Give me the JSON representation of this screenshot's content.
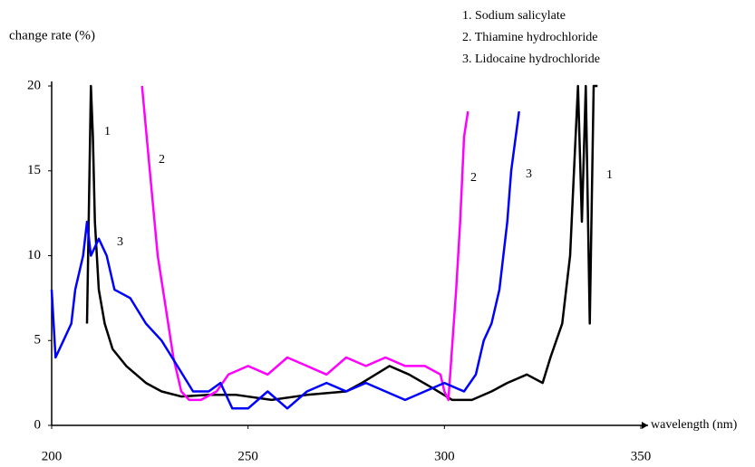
{
  "chart_data": {
    "type": "line",
    "y_label": "change rate (%)",
    "x_label": "wavelength (nm)",
    "xlim": [
      200,
      350
    ],
    "xticks": [
      200,
      250,
      300,
      350
    ],
    "ylim": [
      0,
      20
    ],
    "yticks": [
      0,
      5,
      10,
      15,
      20
    ],
    "series": [
      {
        "name": "1. Sodium salicylate",
        "color": "#000000",
        "x": [
          209,
          210,
          210.5,
          211,
          212,
          213.5,
          215.5,
          219,
          224,
          228,
          233,
          240,
          247,
          256,
          265,
          275,
          279,
          286,
          291,
          297,
          302,
          307,
          312,
          316,
          321,
          325,
          327,
          330,
          332,
          333,
          334,
          335,
          336,
          337,
          338,
          339
        ],
        "values": [
          6,
          20,
          17,
          12,
          8,
          6,
          4.5,
          3.5,
          2.5,
          2,
          1.7,
          1.8,
          1.8,
          1.5,
          1.8,
          2,
          2.5,
          3.5,
          3,
          2.2,
          1.5,
          1.5,
          2,
          2.5,
          3,
          2.5,
          4,
          6,
          10,
          15,
          20,
          12,
          20,
          6,
          20,
          20
        ]
      },
      {
        "name": "2. Thiamine hydrochloride",
        "color": "#ff00ff",
        "x": [
          223,
          225,
          227,
          229,
          231,
          233,
          235,
          238,
          242,
          245,
          250,
          255,
          260,
          265,
          270,
          275,
          280,
          285,
          290,
          295,
          299,
          300,
          301,
          303,
          304,
          305,
          306
        ],
        "values": [
          20,
          15,
          10,
          7,
          4,
          2,
          1.5,
          1.5,
          2,
          3,
          3.5,
          3,
          4,
          3.5,
          3,
          4,
          3.5,
          4,
          3.5,
          3.5,
          3,
          2,
          1.5,
          8,
          12,
          17,
          18.5
        ]
      },
      {
        "name": "3. Lidocaine hydrochloride",
        "color": "#0000ff",
        "x": [
          200,
          201,
          203,
          205,
          206,
          208,
          209,
          210,
          212,
          214,
          216,
          220,
          224,
          228,
          232,
          236,
          240,
          243,
          246,
          250,
          255,
          260,
          265,
          270,
          275,
          280,
          285,
          290,
          295,
          300,
          305,
          308,
          310,
          312,
          314,
          316,
          317,
          319
        ],
        "values": [
          8,
          4,
          5,
          6,
          8,
          10,
          12,
          10,
          11,
          10,
          8,
          7.5,
          6,
          5,
          3.5,
          2,
          2,
          2.5,
          1,
          1,
          2,
          1,
          2,
          2.5,
          2,
          2.5,
          2,
          1.5,
          2,
          2.5,
          2,
          3,
          5,
          6,
          8,
          12,
          15,
          18.5
        ]
      }
    ],
    "annotations": [
      "1",
      "2",
      "3",
      "2",
      "3",
      "1"
    ]
  }
}
